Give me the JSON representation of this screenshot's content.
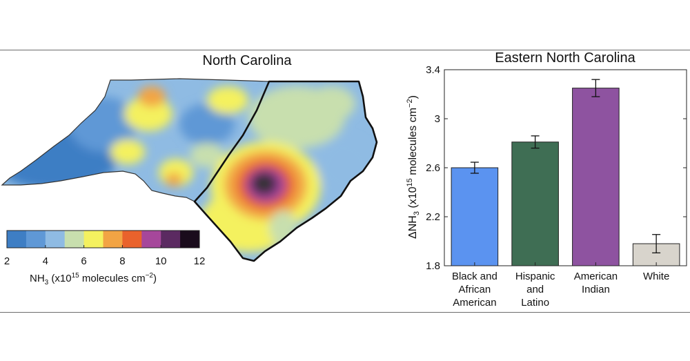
{
  "left_panel": {
    "title": "North Carolina",
    "colorbar": {
      "ticks": [
        "2",
        "4",
        "6",
        "8",
        "10",
        "12"
      ],
      "label_main": "NH",
      "label_sub": "3",
      "label_mid": " (x10",
      "label_sup": "15",
      "label_unit": " molecules cm",
      "label_unit_sup": "−2",
      "label_close": ")",
      "colors": [
        "#3e7ec4",
        "#5f98d6",
        "#8fbbe3",
        "#c8dfae",
        "#f4f15f",
        "#f2a444",
        "#e9622c",
        "#a6479b",
        "#5b2a61",
        "#1a0c1c"
      ]
    }
  },
  "chart_data": {
    "type": "bar",
    "title": "Eastern North Carolina",
    "categories": [
      "Black and African American",
      "Hispanic and Latino",
      "American Indian",
      "White"
    ],
    "category_lines": [
      [
        "Black and",
        "African",
        "American"
      ],
      [
        "Hispanic",
        "and",
        "Latino"
      ],
      [
        "American",
        "Indian"
      ],
      [
        "White"
      ]
    ],
    "values": [
      2.6,
      2.81,
      3.25,
      1.98
    ],
    "errors": [
      0.045,
      0.05,
      0.07,
      0.075
    ],
    "bar_colors": [
      "#5b93f0",
      "#3f6e54",
      "#8e53a0",
      "#d8d4cc"
    ],
    "ylim": [
      1.8,
      3.4
    ],
    "yticks": [
      "1.8",
      "2.2",
      "2.6",
      "3",
      "3.4"
    ],
    "ylabel_parts": {
      "main": "ΔNH",
      "sub": "3",
      "mid": " (x10",
      "sup": "15",
      "unit": " molecules cm",
      "unit_sup": "−2",
      "close": ")"
    },
    "grid": false
  }
}
